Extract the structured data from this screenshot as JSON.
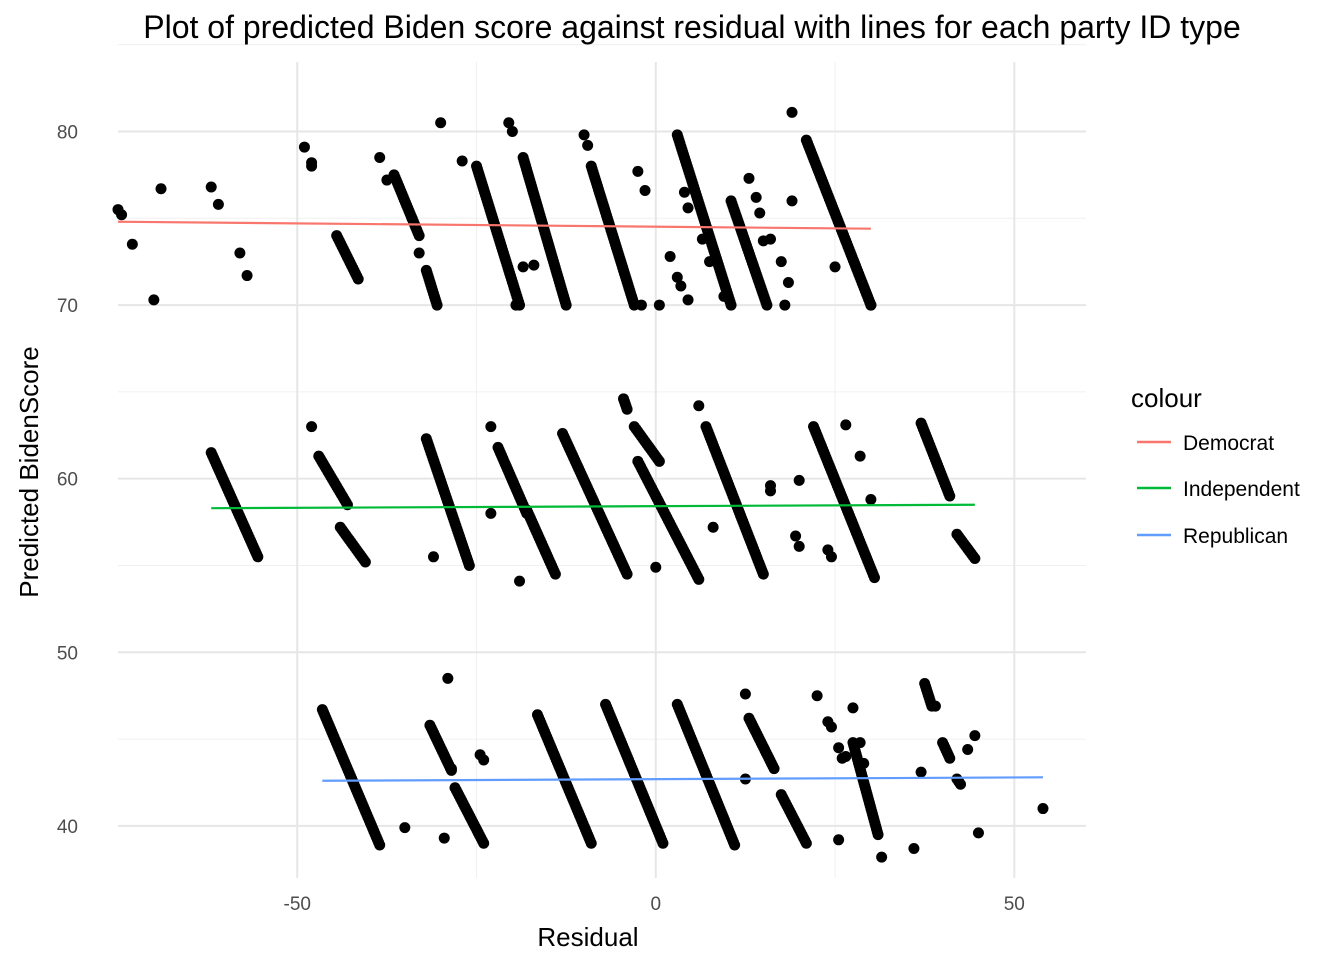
{
  "chart_data": {
    "type": "scatter",
    "title": "Plot of predicted Biden score against residual with lines for each party ID type",
    "xlabel": "Residual",
    "ylabel": "Predicted BidenScore",
    "xlim": [
      -75,
      60
    ],
    "ylim": [
      37,
      84
    ],
    "x_ticks": [
      -50,
      0,
      50
    ],
    "x_tick_labels": [
      "-50",
      "0",
      "50"
    ],
    "y_ticks": [
      40,
      50,
      60,
      70,
      80
    ],
    "y_tick_labels": [
      "40",
      "50",
      "60",
      "70",
      "80"
    ],
    "grid": true,
    "legend": {
      "title": "colour",
      "placement": "right"
    },
    "point_color": "#000000",
    "series": [
      {
        "name": "Democrat",
        "color": "#F8766D",
        "fit_line": {
          "x": [
            -75,
            30
          ],
          "y": [
            74.8,
            74.4
          ]
        },
        "strips": [
          [
            -25,
            78,
            -19,
            70
          ],
          [
            -18.5,
            78.5,
            -12.5,
            70
          ],
          [
            -9,
            78,
            -3,
            70
          ],
          [
            3,
            79.8,
            10.5,
            70
          ],
          [
            10.5,
            76,
            15.5,
            70
          ],
          [
            21,
            79.5,
            30,
            70
          ],
          [
            -36.5,
            77.5,
            -33,
            74
          ],
          [
            -32,
            72,
            -30.5,
            70
          ],
          [
            -44.5,
            74,
            -41.5,
            71.5
          ]
        ],
        "points": [
          [
            -75,
            75.5
          ],
          [
            -74.5,
            75.2
          ],
          [
            -73,
            73.5
          ],
          [
            -70,
            70.3
          ],
          [
            -69,
            76.7
          ],
          [
            -62,
            76.8
          ],
          [
            -61,
            75.8
          ],
          [
            -58,
            73
          ],
          [
            -57,
            71.7
          ],
          [
            -49,
            79.1
          ],
          [
            -48,
            78.2
          ],
          [
            -48,
            78.0
          ],
          [
            -38.5,
            78.5
          ],
          [
            -37.5,
            77.2
          ],
          [
            -34,
            75
          ],
          [
            -33,
            73
          ],
          [
            -30,
            80.5
          ],
          [
            -27,
            78.3
          ],
          [
            -20.5,
            80.5
          ],
          [
            -20,
            80
          ],
          [
            -18.5,
            72.2
          ],
          [
            -17,
            72.3
          ],
          [
            -19.5,
            70
          ],
          [
            -10,
            79.8
          ],
          [
            -9.5,
            79.2
          ],
          [
            -2.5,
            77.7
          ],
          [
            -1.5,
            76.6
          ],
          [
            -2,
            70
          ],
          [
            0.5,
            70
          ],
          [
            2,
            72.8
          ],
          [
            3,
            71.6
          ],
          [
            3.5,
            71.1
          ],
          [
            4.5,
            75.6
          ],
          [
            4,
            76.5
          ],
          [
            4.5,
            70.3
          ],
          [
            6.5,
            73.8
          ],
          [
            7.5,
            72.5
          ],
          [
            9.5,
            70.5
          ],
          [
            13,
            77.3
          ],
          [
            14,
            76.2
          ],
          [
            14.5,
            75.3
          ],
          [
            15,
            73.7
          ],
          [
            16,
            73.8
          ],
          [
            17.5,
            72.5
          ],
          [
            18,
            70
          ],
          [
            18.5,
            71.3
          ],
          [
            19,
            76
          ],
          [
            19,
            81.1
          ],
          [
            25,
            72.2
          ],
          [
            30,
            70
          ]
        ]
      },
      {
        "name": "Independent",
        "color": "#00BA38",
        "fit_line": {
          "x": [
            -62,
            44.5
          ],
          "y": [
            58.3,
            58.5
          ]
        },
        "strips": [
          [
            -62,
            61.5,
            -55.5,
            55.5
          ],
          [
            -47,
            61.3,
            -43,
            58.5
          ],
          [
            -44,
            57.2,
            -40.5,
            55.2
          ],
          [
            -32,
            62.3,
            -26,
            55
          ],
          [
            -22,
            61.8,
            -18,
            58
          ],
          [
            -18,
            58.2,
            -14,
            54.5
          ],
          [
            -13,
            62.6,
            -4,
            54.5
          ],
          [
            -3,
            63,
            0.5,
            61
          ],
          [
            -2.5,
            61,
            6,
            54.2
          ],
          [
            7,
            63,
            15,
            54.5
          ],
          [
            22,
            63,
            30.5,
            54.3
          ],
          [
            37,
            63.2,
            41,
            59
          ],
          [
            42,
            56.8,
            44.5,
            55.4
          ],
          [
            -4.5,
            64.6,
            -4,
            64
          ]
        ],
        "points": [
          [
            -48,
            63
          ],
          [
            -31,
            55.5
          ],
          [
            -23,
            63
          ],
          [
            -23,
            58
          ],
          [
            -19,
            54.1
          ],
          [
            0,
            54.9
          ],
          [
            6,
            64.2
          ],
          [
            8,
            57.2
          ],
          [
            16,
            59.6
          ],
          [
            16,
            59.3
          ],
          [
            19.5,
            56.7
          ],
          [
            20,
            56.1
          ],
          [
            20,
            59.9
          ],
          [
            26.5,
            63.1
          ],
          [
            28.5,
            61.3
          ],
          [
            30,
            58.8
          ],
          [
            24,
            55.9
          ],
          [
            24.5,
            55.5
          ]
        ]
      },
      {
        "name": "Republican",
        "color": "#619CFF",
        "fit_line": {
          "x": [
            -46.5,
            54
          ],
          "y": [
            42.6,
            42.8
          ]
        },
        "strips": [
          [
            -46.5,
            46.7,
            -38.5,
            38.9
          ],
          [
            -31.5,
            45.8,
            -28.5,
            43.2
          ],
          [
            -28,
            42.2,
            -24,
            39
          ],
          [
            -16.5,
            46.4,
            -9,
            39
          ],
          [
            -7,
            47,
            1,
            39
          ],
          [
            3,
            47,
            11,
            38.9
          ],
          [
            13,
            46.2,
            16.5,
            43.3
          ],
          [
            17.5,
            41.8,
            21,
            39
          ],
          [
            27.5,
            44.8,
            31,
            39.5
          ],
          [
            37.5,
            48.2,
            38.5,
            46.9
          ],
          [
            40,
            44.8,
            41,
            43.9
          ],
          [
            42,
            42.7,
            42.5,
            42.4
          ]
        ],
        "points": [
          [
            -35,
            39.9
          ],
          [
            -29.5,
            39.3
          ],
          [
            -29,
            48.5
          ],
          [
            -28.5,
            43.3
          ],
          [
            -24.5,
            44.1
          ],
          [
            -24,
            43.8
          ],
          [
            12.5,
            47.6
          ],
          [
            12.5,
            42.7
          ],
          [
            22.5,
            47.5
          ],
          [
            24,
            46
          ],
          [
            24.5,
            45.7
          ],
          [
            25.5,
            44.5
          ],
          [
            26,
            43.9
          ],
          [
            26.5,
            44
          ],
          [
            25.5,
            39.2
          ],
          [
            27.5,
            46.8
          ],
          [
            28.5,
            44.8
          ],
          [
            29,
            43.6
          ],
          [
            31.5,
            38.2
          ],
          [
            36,
            38.7
          ],
          [
            37,
            43.1
          ],
          [
            39,
            46.9
          ],
          [
            44.5,
            45.2
          ],
          [
            45,
            39.6
          ],
          [
            43.5,
            44.4
          ],
          [
            54,
            41
          ]
        ]
      }
    ]
  }
}
